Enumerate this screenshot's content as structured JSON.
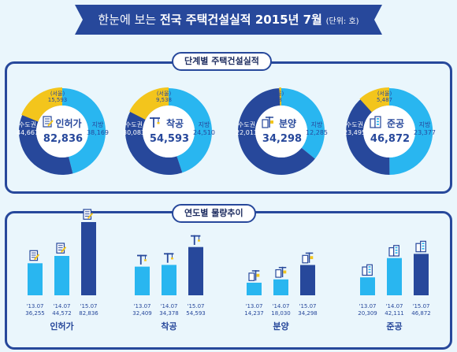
{
  "header": {
    "title_prefix": "한눈에 보는",
    "title_main": "전국 주택건설실적 2015년 7월",
    "unit": "(단위: 호)"
  },
  "donut_section": {
    "title": "단계별 주택건설실적"
  },
  "trend_section": {
    "title": "연도별 물량추이"
  },
  "labels": {
    "capital": "수도권",
    "local": "지방",
    "seoul": "(서울)"
  },
  "colors": {
    "navy": "#27489b",
    "sky": "#29b6f0",
    "gold": "#f3c51c",
    "light": "#dbeffa"
  },
  "chart_data": [
    {
      "type": "pie",
      "title": "단계별 주택건설실적",
      "categories": [
        "인허가",
        "착공",
        "분양",
        "준공"
      ],
      "icons": [
        "permit-document-icon",
        "crane-icon",
        "building-construction-icon",
        "completed-building-icon"
      ],
      "totals": [
        "82,836",
        "54,593",
        "34,298",
        "46,872"
      ],
      "capital": [
        44667,
        30083,
        22013,
        23495
      ],
      "capital_labels": [
        "44,667",
        "30,083",
        "22,013",
        "23,495"
      ],
      "local": [
        38169,
        24510,
        12285,
        23377
      ],
      "local_labels": [
        "38,169",
        "24,510",
        "12,285",
        "23,377"
      ],
      "seoul": [
        15593,
        9538,
        288,
        5487
      ],
      "seoul_labels": [
        "15,593",
        "9,538",
        "288",
        "5,487"
      ]
    },
    {
      "type": "bar",
      "title": "연도별 물량추이",
      "categories": [
        "인허가",
        "착공",
        "분양",
        "준공"
      ],
      "x": [
        "'13.07",
        "'14.07",
        "'15.07"
      ],
      "series": [
        {
          "name": "인허가",
          "values": [
            36255,
            44572,
            82836
          ],
          "labels": [
            "36,255",
            "44,572",
            "82,836"
          ]
        },
        {
          "name": "착공",
          "values": [
            32409,
            34378,
            54593
          ],
          "labels": [
            "32,409",
            "34,378",
            "54,593"
          ]
        },
        {
          "name": "분양",
          "values": [
            14237,
            18030,
            34298
          ],
          "labels": [
            "14,237",
            "18,030",
            "34,298"
          ]
        },
        {
          "name": "준공",
          "values": [
            20309,
            42111,
            46872
          ],
          "labels": [
            "20,309",
            "42,111",
            "46,872"
          ]
        }
      ]
    }
  ]
}
